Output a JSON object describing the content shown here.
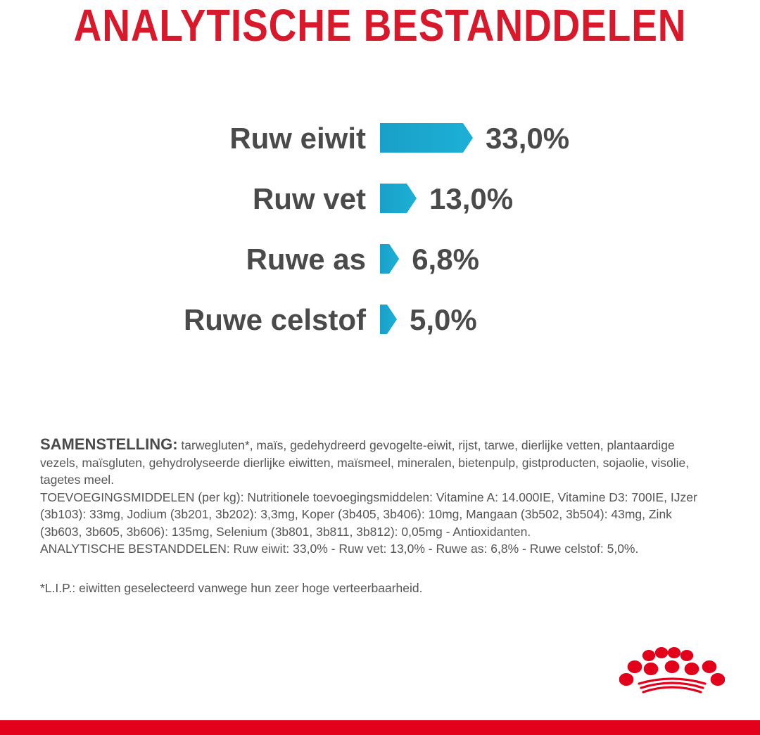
{
  "title": "ANALYTISCHE BESTANDDELEN",
  "colors": {
    "title": "#d8192c",
    "bar": "#1cb0d6",
    "bar_gradient_start": "#1aa0c8",
    "label": "#4a4a4a",
    "body_text": "#555555",
    "brand_red": "#e3001b"
  },
  "chart_data": {
    "type": "bar",
    "orientation": "horizontal",
    "unit": "%",
    "categories": [
      "Ruw eiwit",
      "Ruw vet",
      "Ruwe as",
      "Ruwe celstof"
    ],
    "values": [
      33.0,
      13.0,
      6.8,
      5.0
    ],
    "value_labels": [
      "33,0%",
      "13,0%",
      "6,8%",
      "5,0%"
    ],
    "title": "ANALYTISCHE BESTANDDELEN",
    "grid": false,
    "bar_shape": "arrow"
  },
  "composition": {
    "lead": "SAMENSTELLING:",
    "ingredients": " tarwegluten*, maïs, gedehydreerd gevogelte-eiwit, rijst, tarwe, dierlijke vetten, plantaardige vezels, maïsgluten, gehydrolyseerde dierlijke eiwitten, maïsmeel, mineralen, bietenpulp, gistproducten, sojaolie, visolie, tagetes meel.",
    "additives": "TOEVOEGINGSMIDDELEN (per kg): Nutritionele toevoegingsmiddelen: Vitamine A: 14.000IE, Vitamine D3: 700IE, IJzer (3b103): 33mg, Jodium (3b201, 3b202): 3,3mg, Koper (3b405, 3b406): 10mg, Mangaan (3b502, 3b504): 43mg, Zink (3b603, 3b605, 3b606): 135mg, Selenium (3b801, 3b811, 3b812): 0,05mg - Antioxidanten.",
    "analytical": "ANALYTISCHE BESTANDDELEN: Ruw eiwit: 33,0% - Ruw vet: 13,0% - Ruwe as: 6,8% - Ruwe celstof: 5,0%."
  },
  "footnote": "*L.I.P.: eiwitten geselecteerd vanwege hun zeer hoge verteerbaarheid.",
  "logo": {
    "icon": "royal-canin-crown-logo"
  }
}
